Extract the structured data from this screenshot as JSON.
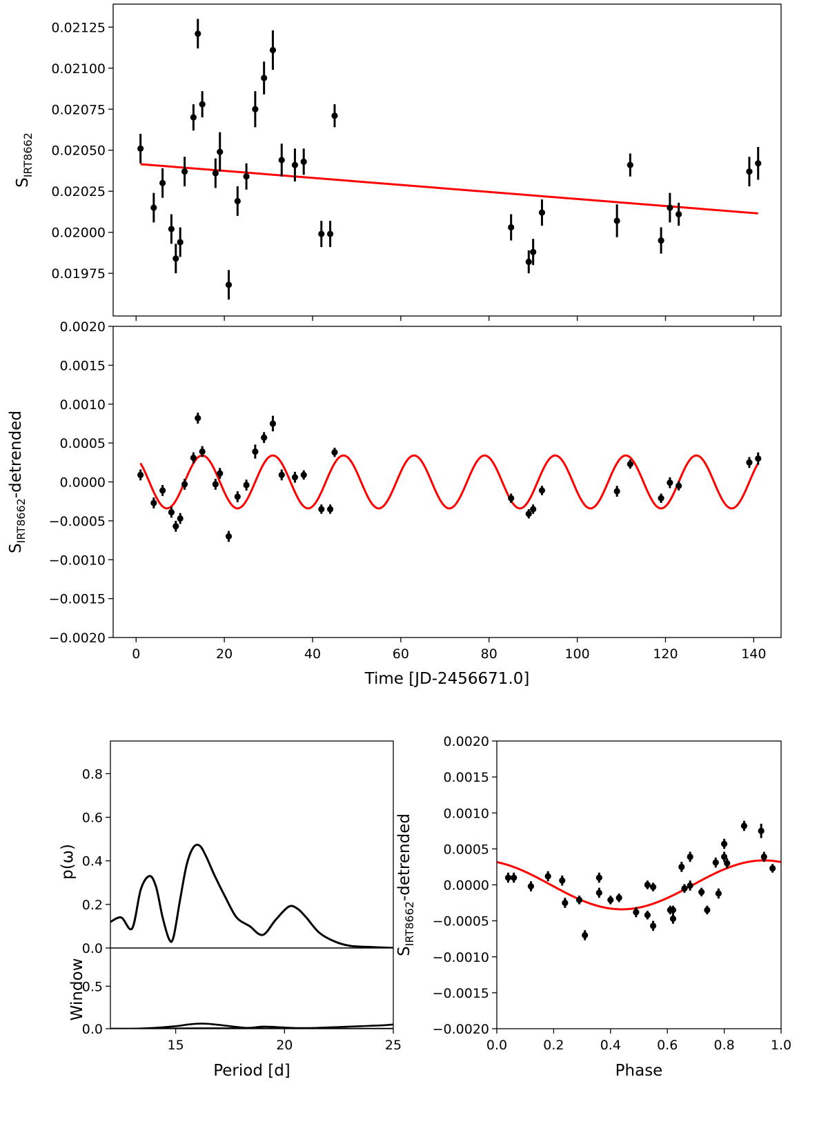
{
  "colors": {
    "data": "#000000",
    "model": "#ff0000",
    "frame": "#000000",
    "background": "#ffffff"
  },
  "chart_data": [
    {
      "id": "raw",
      "type": "scatter",
      "xlabel": "",
      "ylabel_main": "S",
      "ylabel_sub": "IRT8662",
      "ylabel_suffix": "",
      "xlim": [
        -5.2,
        146.2
      ],
      "ylim": [
        0.01949,
        0.02139
      ],
      "yticks": [
        0.01975,
        0.02,
        0.02025,
        0.0205,
        0.02075,
        0.021,
        0.02125
      ],
      "ytick_labels": [
        "0.01975",
        "0.02000",
        "0.02025",
        "0.02050",
        "0.02075",
        "0.02100",
        "0.02125"
      ],
      "xticks": [
        0,
        20,
        40,
        60,
        80,
        100,
        120,
        140
      ],
      "xtick_labels": [],
      "grid": false,
      "points": [
        {
          "x": 1.0,
          "y": 0.02051,
          "err": 9e-05
        },
        {
          "x": 4.0,
          "y": 0.02015,
          "err": 9e-05
        },
        {
          "x": 6.0,
          "y": 0.0203,
          "err": 9e-05
        },
        {
          "x": 8.0,
          "y": 0.02002,
          "err": 9e-05
        },
        {
          "x": 9.0,
          "y": 0.01984,
          "err": 9e-05
        },
        {
          "x": 10.0,
          "y": 0.01994,
          "err": 9e-05
        },
        {
          "x": 11.0,
          "y": 0.02037,
          "err": 9e-05
        },
        {
          "x": 13.0,
          "y": 0.0207,
          "err": 8e-05
        },
        {
          "x": 14.0,
          "y": 0.02121,
          "err": 9e-05
        },
        {
          "x": 15.0,
          "y": 0.02078,
          "err": 8e-05
        },
        {
          "x": 18.0,
          "y": 0.02036,
          "err": 9e-05
        },
        {
          "x": 19.0,
          "y": 0.02049,
          "err": 0.00012
        },
        {
          "x": 21.0,
          "y": 0.01968,
          "err": 9e-05
        },
        {
          "x": 23.0,
          "y": 0.02019,
          "err": 9e-05
        },
        {
          "x": 25.0,
          "y": 0.02034,
          "err": 8e-05
        },
        {
          "x": 27.0,
          "y": 0.02075,
          "err": 0.00011
        },
        {
          "x": 29.0,
          "y": 0.02094,
          "err": 0.0001
        },
        {
          "x": 31.0,
          "y": 0.02111,
          "err": 0.00012
        },
        {
          "x": 33.0,
          "y": 0.02044,
          "err": 0.0001
        },
        {
          "x": 36.0,
          "y": 0.02041,
          "err": 0.0001
        },
        {
          "x": 38.0,
          "y": 0.02043,
          "err": 8e-05
        },
        {
          "x": 42.0,
          "y": 0.01999,
          "err": 8e-05
        },
        {
          "x": 44.0,
          "y": 0.01999,
          "err": 8e-05
        },
        {
          "x": 45.0,
          "y": 0.02071,
          "err": 7e-05
        },
        {
          "x": 85.0,
          "y": 0.02003,
          "err": 8e-05
        },
        {
          "x": 89.0,
          "y": 0.01982,
          "err": 7e-05
        },
        {
          "x": 90.0,
          "y": 0.01988,
          "err": 8e-05
        },
        {
          "x": 92.0,
          "y": 0.02012,
          "err": 8e-05
        },
        {
          "x": 109.0,
          "y": 0.02007,
          "err": 0.0001
        },
        {
          "x": 112.0,
          "y": 0.02041,
          "err": 7e-05
        },
        {
          "x": 119.0,
          "y": 0.01995,
          "err": 8e-05
        },
        {
          "x": 121.0,
          "y": 0.02015,
          "err": 9e-05
        },
        {
          "x": 123.0,
          "y": 0.02011,
          "err": 7e-05
        },
        {
          "x": 139.0,
          "y": 0.02037,
          "err": 9e-05
        },
        {
          "x": 141.0,
          "y": 0.02042,
          "err": 0.0001
        }
      ],
      "fit_line": {
        "x": [
          1.0,
          141.0
        ],
        "y": [
          0.020415,
          0.020115
        ]
      }
    },
    {
      "id": "detrended",
      "type": "scatter",
      "xlabel": "Time [JD-2456671.0]",
      "ylabel_main": "S",
      "ylabel_sub": "IRT8662",
      "ylabel_suffix": "-detrended",
      "xlim": [
        -5.2,
        146.2
      ],
      "ylim": [
        -0.002,
        0.002
      ],
      "yticks": [
        -0.002,
        -0.0015,
        -0.001,
        -0.0005,
        0.0,
        0.0005,
        0.001,
        0.0015,
        0.002
      ],
      "ytick_labels": [
        "−0.0020",
        "−0.0015",
        "−0.0010",
        "−0.0005",
        "0.0000",
        "0.0005",
        "0.0010",
        "0.0015",
        "0.0020"
      ],
      "xticks": [
        0,
        20,
        40,
        60,
        80,
        100,
        120,
        140
      ],
      "xtick_labels": [
        "0",
        "20",
        "40",
        "60",
        "80",
        "100",
        "120",
        "140"
      ],
      "grid": false,
      "points": [
        {
          "x": 1.0,
          "y": 9e-05,
          "err": 7e-05
        },
        {
          "x": 4.0,
          "y": -0.00027,
          "err": 7e-05
        },
        {
          "x": 6.0,
          "y": -0.00011,
          "err": 7e-05
        },
        {
          "x": 8.0,
          "y": -0.00039,
          "err": 7e-05
        },
        {
          "x": 9.0,
          "y": -0.00057,
          "err": 7e-05
        },
        {
          "x": 10.0,
          "y": -0.00047,
          "err": 7e-05
        },
        {
          "x": 11.0,
          "y": -3e-05,
          "err": 7e-05
        },
        {
          "x": 13.0,
          "y": 0.00031,
          "err": 7e-05
        },
        {
          "x": 14.0,
          "y": 0.00082,
          "err": 7e-05
        },
        {
          "x": 15.0,
          "y": 0.00039,
          "err": 7e-05
        },
        {
          "x": 18.0,
          "y": -3e-05,
          "err": 7e-05
        },
        {
          "x": 19.0,
          "y": 0.00011,
          "err": 7e-05
        },
        {
          "x": 21.0,
          "y": -0.0007,
          "err": 7e-05
        },
        {
          "x": 23.0,
          "y": -0.00019,
          "err": 7e-05
        },
        {
          "x": 25.0,
          "y": -4e-05,
          "err": 7e-05
        },
        {
          "x": 27.0,
          "y": 0.00039,
          "err": 9e-05
        },
        {
          "x": 29.0,
          "y": 0.00057,
          "err": 7e-05
        },
        {
          "x": 31.0,
          "y": 0.00075,
          "err": 0.0001
        },
        {
          "x": 33.0,
          "y": 9e-05,
          "err": 7e-05
        },
        {
          "x": 36.0,
          "y": 6e-05,
          "err": 7e-05
        },
        {
          "x": 38.0,
          "y": 9e-05,
          "err": 6e-05
        },
        {
          "x": 42.0,
          "y": -0.00035,
          "err": 6e-05
        },
        {
          "x": 44.0,
          "y": -0.00035,
          "err": 6e-05
        },
        {
          "x": 45.0,
          "y": 0.00038,
          "err": 6e-05
        },
        {
          "x": 85.0,
          "y": -0.00021,
          "err": 6e-05
        },
        {
          "x": 89.0,
          "y": -0.00041,
          "err": 6e-05
        },
        {
          "x": 90.0,
          "y": -0.00035,
          "err": 6e-05
        },
        {
          "x": 92.0,
          "y": -0.00011,
          "err": 6e-05
        },
        {
          "x": 109.0,
          "y": -0.00012,
          "err": 7e-05
        },
        {
          "x": 112.0,
          "y": 0.00023,
          "err": 6e-05
        },
        {
          "x": 119.0,
          "y": -0.00021,
          "err": 6e-05
        },
        {
          "x": 121.0,
          "y": -1e-05,
          "err": 7e-05
        },
        {
          "x": 123.0,
          "y": -5e-05,
          "err": 6e-05
        },
        {
          "x": 139.0,
          "y": 0.00025,
          "err": 7e-05
        },
        {
          "x": 141.0,
          "y": 0.0003,
          "err": 8e-05
        }
      ],
      "model": {
        "amplitude": 0.00034,
        "period": 16.0,
        "peak_time": 15.0,
        "x_range": [
          1.0,
          141.0
        ]
      }
    },
    {
      "id": "periodogram",
      "type": "line",
      "xlabel": "",
      "ylabel": "p(ω)",
      "xlim": [
        12.0,
        25.0
      ],
      "ylim": [
        0.0,
        0.95
      ],
      "yticks": [
        0.0,
        0.2,
        0.4,
        0.6,
        0.8
      ],
      "ytick_labels": [
        "0.0",
        "0.2",
        "0.4",
        "0.6",
        "0.8"
      ],
      "grid": false,
      "series": [
        {
          "x": [
            12.0,
            12.5,
            13.0,
            13.4,
            13.8,
            14.1,
            14.4,
            14.7,
            14.9,
            15.2,
            15.5,
            15.8,
            16.1,
            16.4,
            16.8,
            17.3,
            17.8,
            18.4,
            19.0,
            19.6,
            20.2,
            20.6,
            21.0,
            21.6,
            22.3,
            23.0,
            23.8,
            25.0
          ],
          "y": [
            0.12,
            0.14,
            0.09,
            0.27,
            0.33,
            0.28,
            0.14,
            0.04,
            0.05,
            0.22,
            0.38,
            0.46,
            0.47,
            0.42,
            0.33,
            0.23,
            0.14,
            0.1,
            0.06,
            0.13,
            0.19,
            0.18,
            0.14,
            0.07,
            0.03,
            0.01,
            0.005,
            0.0
          ]
        }
      ]
    },
    {
      "id": "window",
      "type": "line",
      "xlabel": "Period [d]",
      "ylabel": "Window",
      "xlim": [
        12.0,
        25.0
      ],
      "ylim": [
        0.0,
        0.95
      ],
      "yticks": [
        0.0,
        0.5
      ],
      "ytick_labels": [
        "0.0",
        "0.5"
      ],
      "xticks": [
        15,
        20,
        25
      ],
      "xtick_labels": [
        "15",
        "20",
        "25"
      ],
      "grid": false,
      "series": [
        {
          "x": [
            12.0,
            13.0,
            14.0,
            15.0,
            15.6,
            16.2,
            16.8,
            17.5,
            18.3,
            19.0,
            19.6,
            20.5,
            21.5,
            22.5,
            23.5,
            24.5,
            25.0
          ],
          "y": [
            0.0,
            0.0,
            0.01,
            0.03,
            0.05,
            0.06,
            0.05,
            0.03,
            0.01,
            0.025,
            0.02,
            0.008,
            0.01,
            0.02,
            0.03,
            0.04,
            0.05
          ]
        },
        {
          "x": [
            12.0,
            14.0,
            16.0,
            18.0,
            20.0,
            22.0,
            24.0,
            25.0
          ],
          "y": [
            0.0,
            0.0,
            0.005,
            0.005,
            0.0,
            0.0,
            0.0,
            0.0
          ]
        }
      ]
    },
    {
      "id": "phase",
      "type": "scatter",
      "xlabel": "Phase",
      "ylabel_main": "S",
      "ylabel_sub": "IRT8662",
      "ylabel_suffix": "-detrended",
      "xlim": [
        0.0,
        1.0
      ],
      "ylim": [
        -0.002,
        0.002
      ],
      "yticks": [
        -0.002,
        -0.0015,
        -0.001,
        -0.0005,
        0.0,
        0.0005,
        0.001,
        0.0015,
        0.002
      ],
      "ytick_labels": [
        "−0.0020",
        "−0.0015",
        "−0.0010",
        "−0.0005",
        "0.0000",
        "0.0005",
        "0.0010",
        "0.0015",
        "0.0020"
      ],
      "xticks": [
        0.0,
        0.2,
        0.4,
        0.6,
        0.8,
        1.0
      ],
      "xtick_labels": [
        "0.0",
        "0.2",
        "0.4",
        "0.6",
        "0.8",
        "1.0"
      ],
      "grid": false,
      "points": [
        {
          "x": 0.04,
          "y": 0.0001,
          "err": 7e-05
        },
        {
          "x": 0.06,
          "y": 0.0001,
          "err": 7e-05
        },
        {
          "x": 0.12,
          "y": -2e-05,
          "err": 7e-05
        },
        {
          "x": 0.18,
          "y": 0.00012,
          "err": 7e-05
        },
        {
          "x": 0.23,
          "y": 6e-05,
          "err": 7e-05
        },
        {
          "x": 0.24,
          "y": -0.00025,
          "err": 7e-05
        },
        {
          "x": 0.29,
          "y": -0.00021,
          "err": 6e-05
        },
        {
          "x": 0.31,
          "y": -0.0007,
          "err": 7e-05
        },
        {
          "x": 0.36,
          "y": 0.0001,
          "err": 7e-05
        },
        {
          "x": 0.36,
          "y": -0.00011,
          "err": 7e-05
        },
        {
          "x": 0.4,
          "y": -0.00021,
          "err": 6e-05
        },
        {
          "x": 0.43,
          "y": -0.00018,
          "err": 6e-05
        },
        {
          "x": 0.49,
          "y": -0.00038,
          "err": 7e-05
        },
        {
          "x": 0.53,
          "y": 0.0,
          "err": 6e-05
        },
        {
          "x": 0.53,
          "y": -0.00042,
          "err": 6e-05
        },
        {
          "x": 0.55,
          "y": -0.00057,
          "err": 7e-05
        },
        {
          "x": 0.55,
          "y": -3e-05,
          "err": 6e-05
        },
        {
          "x": 0.61,
          "y": -0.00035,
          "err": 6e-05
        },
        {
          "x": 0.62,
          "y": -0.00035,
          "err": 6e-05
        },
        {
          "x": 0.62,
          "y": -0.00047,
          "err": 7e-05
        },
        {
          "x": 0.65,
          "y": 0.00025,
          "err": 7e-05
        },
        {
          "x": 0.66,
          "y": -5e-05,
          "err": 6e-05
        },
        {
          "x": 0.68,
          "y": 0.00039,
          "err": 7e-05
        },
        {
          "x": 0.68,
          "y": -1e-05,
          "err": 7e-05
        },
        {
          "x": 0.72,
          "y": -0.0001,
          "err": 6e-05
        },
        {
          "x": 0.74,
          "y": -0.00035,
          "err": 6e-05
        },
        {
          "x": 0.77,
          "y": 0.00031,
          "err": 7e-05
        },
        {
          "x": 0.78,
          "y": -0.00012,
          "err": 7e-05
        },
        {
          "x": 0.8,
          "y": 0.00039,
          "err": 7e-05
        },
        {
          "x": 0.8,
          "y": 0.00057,
          "err": 7e-05
        },
        {
          "x": 0.81,
          "y": 0.0003,
          "err": 7e-05
        },
        {
          "x": 0.87,
          "y": 0.00082,
          "err": 7e-05
        },
        {
          "x": 0.93,
          "y": 0.00075,
          "err": 0.0001
        },
        {
          "x": 0.94,
          "y": 0.00039,
          "err": 7e-05
        },
        {
          "x": 0.97,
          "y": 0.00023,
          "err": 6e-05
        }
      ],
      "model": {
        "amplitude": 0.00034,
        "peak_phase": 0.94,
        "x_range": [
          0.0,
          1.0
        ]
      }
    }
  ]
}
